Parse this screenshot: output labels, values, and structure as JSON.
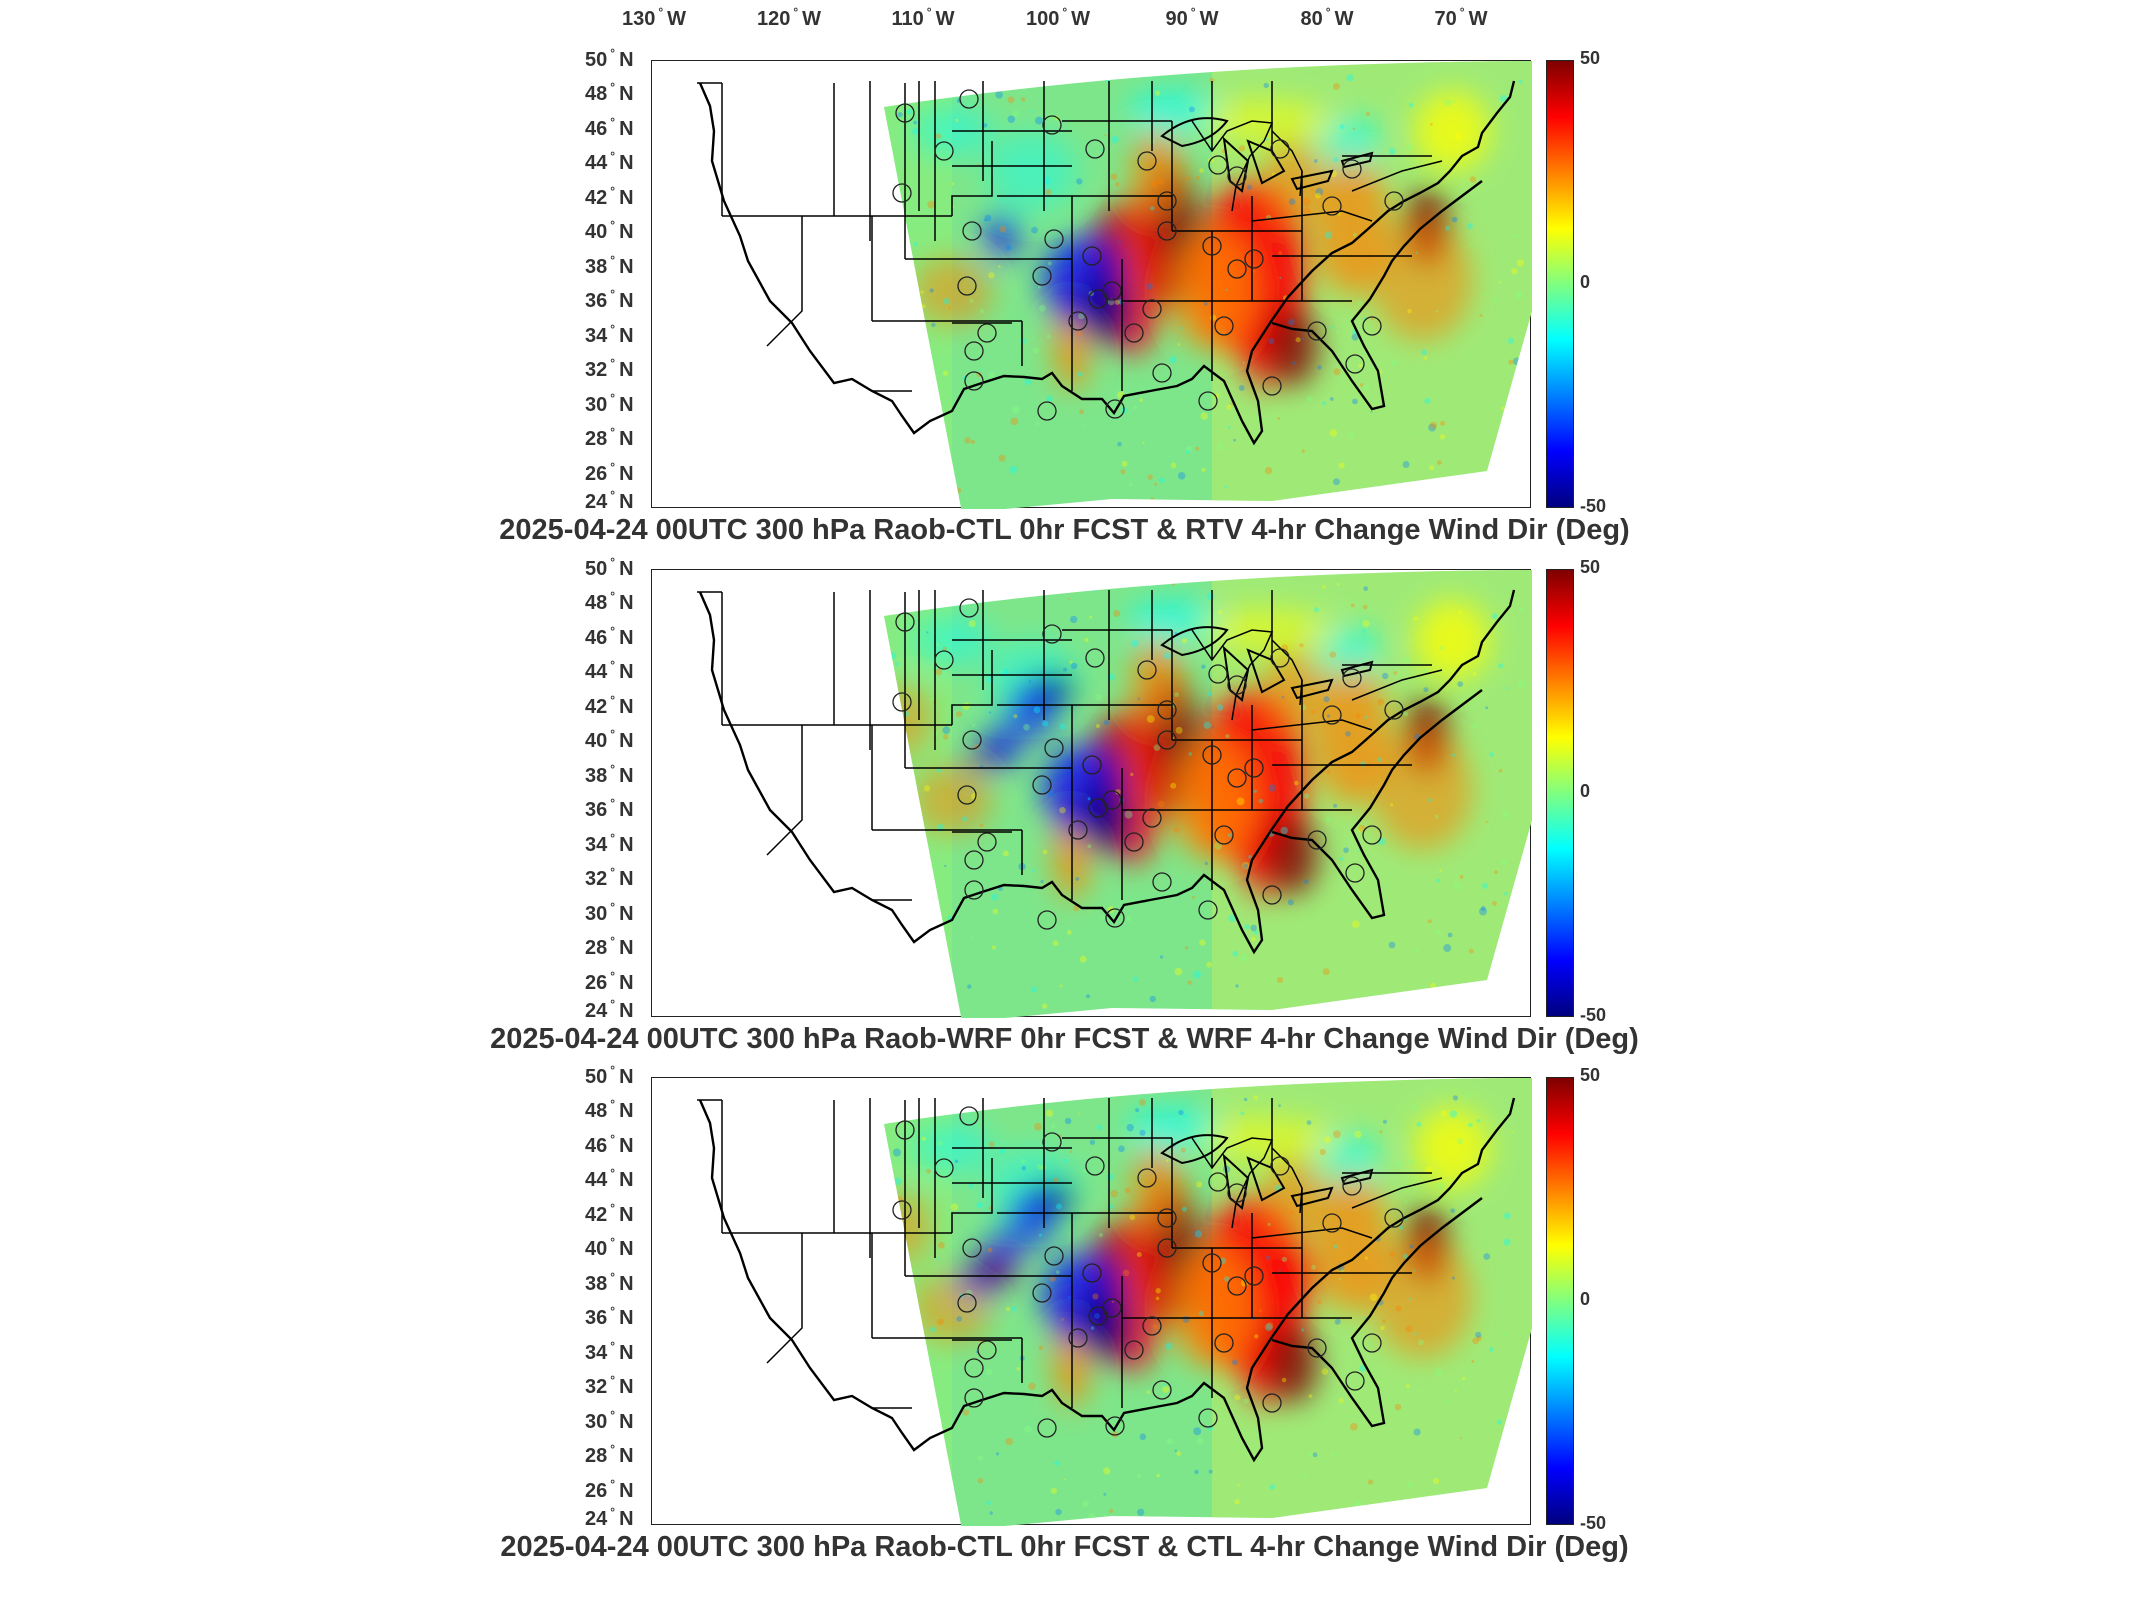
{
  "lon_labels": [
    {
      "value": "130",
      "hemi": "W"
    },
    {
      "value": "120",
      "hemi": "W"
    },
    {
      "value": "110",
      "hemi": "W"
    },
    {
      "value": "100",
      "hemi": "W"
    },
    {
      "value": "90",
      "hemi": "W"
    },
    {
      "value": "80",
      "hemi": "W"
    },
    {
      "value": "70",
      "hemi": "W"
    }
  ],
  "lat_labels": [
    "50",
    "48",
    "46",
    "44",
    "42",
    "40",
    "38",
    "36",
    "34",
    "32",
    "30",
    "28",
    "26",
    "24"
  ],
  "lat_hemi": "N",
  "colorbar": {
    "max_label": "50",
    "mid_label": "0",
    "min_label": "-50",
    "colors": [
      "#00007f",
      "#0000ff",
      "#0080ff",
      "#00ffff",
      "#80ff80",
      "#ffff00",
      "#ff8000",
      "#ff0000",
      "#7f0000"
    ]
  },
  "panels": [
    {
      "caption": "2025-04-24 00UTC 300 hPa Raob-CTL 0hr FCST & RTV 4-hr Change Wind Dir (Deg)"
    },
    {
      "caption": "2025-04-24 00UTC 300 hPa Raob-WRF 0hr FCST & WRF 4-hr Change Wind Dir (Deg)"
    },
    {
      "caption": "2025-04-24 00UTC 300 hPa Raob-CTL 0hr FCST & CTL 4-hr Change Wind Dir (Deg)"
    }
  ]
}
